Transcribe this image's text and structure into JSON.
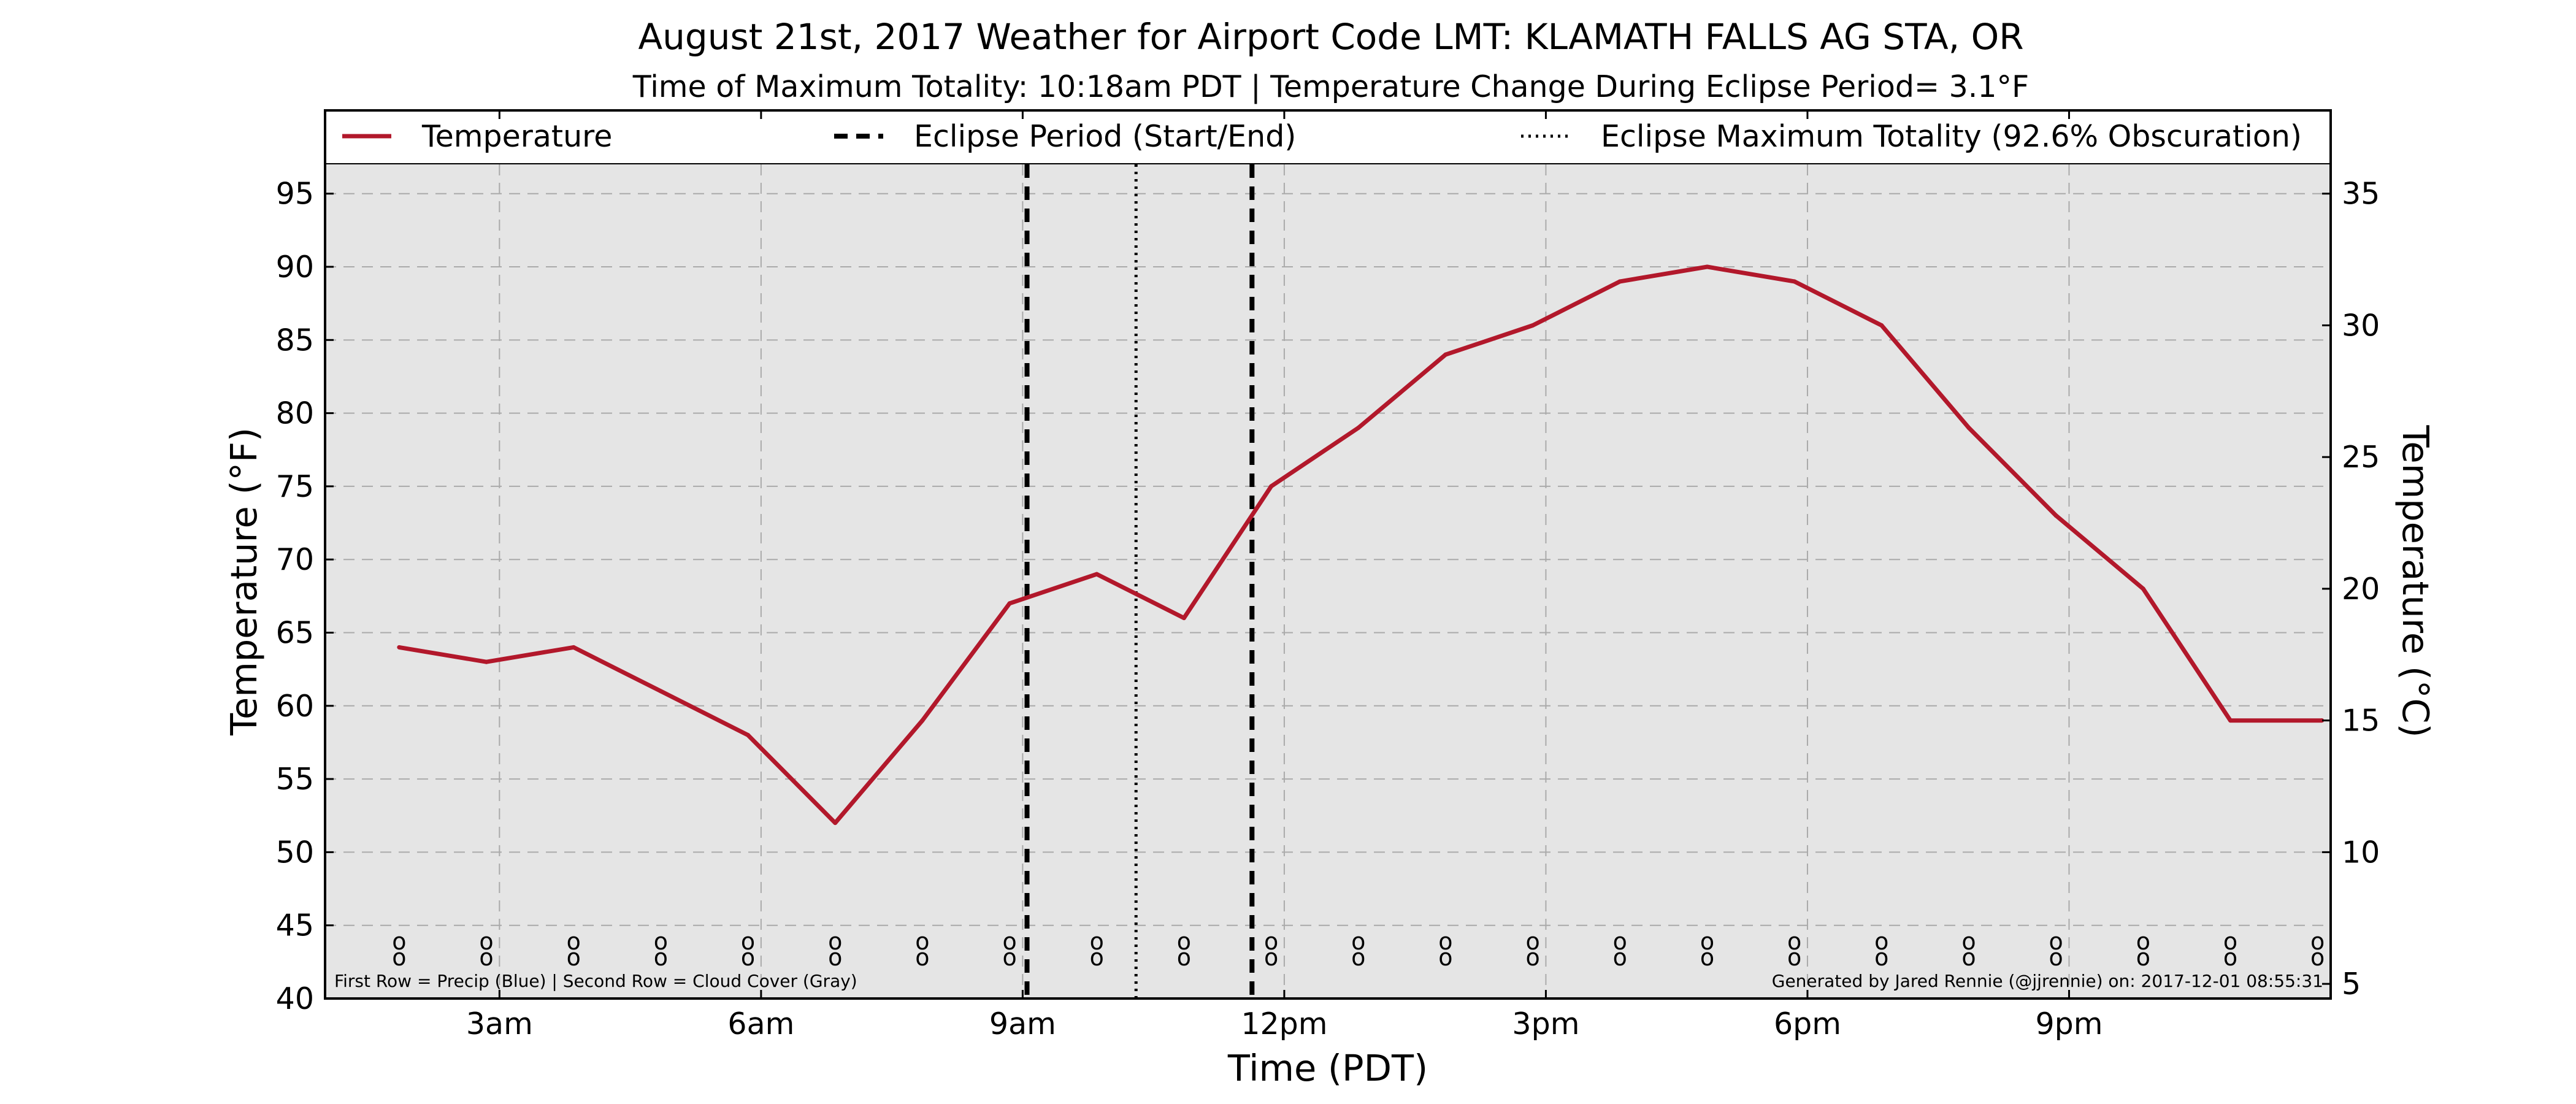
{
  "chart_data": {
    "type": "line",
    "title": "August 21st, 2017 Weather for Airport Code LMT: KLAMATH FALLS AG STA, OR",
    "subtitle": "Time of Maximum Totality: 10:18am PDT | Temperature Change During Eclipse Period= 3.1°F",
    "xlabel": "Time (PDT)",
    "ylabel": "Temperature (°F)",
    "ylabel_right": "Temperature (°C)",
    "xlim": [
      1.0,
      24.0
    ],
    "ylim": [
      40,
      97
    ],
    "ylim_right_c": [
      4.44,
      36.11
    ],
    "x_ticks": [
      {
        "x": 3,
        "label": "3am"
      },
      {
        "x": 6,
        "label": "6am"
      },
      {
        "x": 9,
        "label": "9am"
      },
      {
        "x": 12,
        "label": "12pm"
      },
      {
        "x": 15,
        "label": "3pm"
      },
      {
        "x": 18,
        "label": "6pm"
      },
      {
        "x": 21,
        "label": "9pm"
      }
    ],
    "y_ticks": [
      40,
      45,
      50,
      55,
      60,
      65,
      70,
      75,
      80,
      85,
      90,
      95
    ],
    "y_ticks_right": [
      5,
      10,
      15,
      20,
      25,
      30,
      35
    ],
    "grid": true,
    "legend_position": "top",
    "series": [
      {
        "name": "Temperature",
        "color": "#b2182b",
        "x": [
          1.85,
          2.85,
          3.85,
          4.85,
          5.85,
          6.85,
          7.85,
          8.85,
          9.85,
          10.85,
          11.85,
          12.85,
          13.85,
          14.85,
          15.85,
          16.85,
          17.85,
          18.85,
          19.85,
          20.85,
          21.85,
          22.85,
          23.9
        ],
        "y": [
          64,
          63,
          64,
          61,
          58,
          52,
          59,
          67,
          69,
          66,
          75,
          79,
          84,
          86,
          89,
          90,
          89,
          86,
          79,
          73,
          68,
          59,
          59
        ]
      }
    ],
    "eclipse_period": {
      "name": "Eclipse Period (Start/End)",
      "start": 9.05,
      "end": 11.63,
      "color": "#000000"
    },
    "eclipse_max": {
      "name": "Eclipse Maximum Totality (92.6% Obscuration)",
      "x": 10.3,
      "color": "#000000"
    },
    "row_markers": {
      "x": [
        1.85,
        2.85,
        3.85,
        4.85,
        5.85,
        6.85,
        7.85,
        8.85,
        9.85,
        10.85,
        11.85,
        12.85,
        13.85,
        14.85,
        15.85,
        16.85,
        17.85,
        18.85,
        19.85,
        20.85,
        21.85,
        22.85,
        23.85
      ],
      "precip_y": 43.9,
      "cloud_y": 42.8,
      "glyph": "o"
    },
    "note_left": "First Row = Precip (Blue) | Second Row = Cloud Cover (Gray)",
    "note_right": "Generated by Jared Rennie (@jjrennie) on: 2017-12-01 08:55:31"
  },
  "colors": {
    "plot_background": "#e5e5e5",
    "grid": "#aaaaaa",
    "temperature_line": "#b2182b"
  }
}
